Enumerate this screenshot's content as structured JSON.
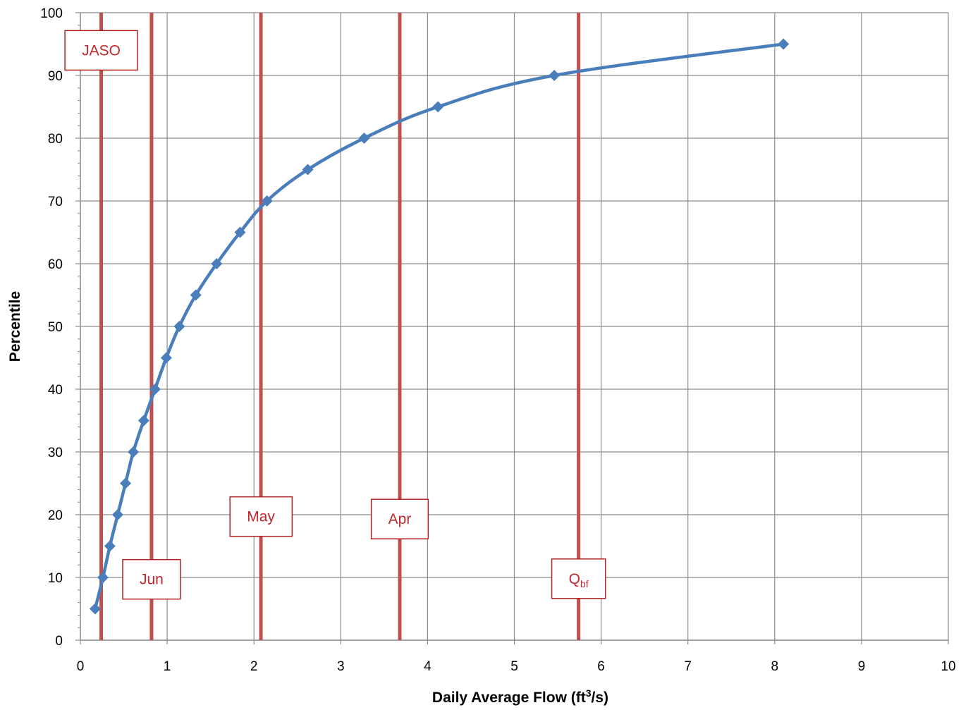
{
  "chart_data": {
    "type": "line",
    "title": "",
    "xlabel_main": "Daily Average Flow (ft",
    "xlabel_sup": "3",
    "xlabel_tail": "/s)",
    "ylabel": "Percentile",
    "xlim": [
      0,
      10
    ],
    "ylim": [
      0,
      100
    ],
    "x_ticks": [
      "0",
      "1",
      "2",
      "3",
      "4",
      "5",
      "6",
      "7",
      "8",
      "9",
      "10"
    ],
    "y_ticks": [
      "0",
      "10",
      "20",
      "30",
      "40",
      "50",
      "60",
      "70",
      "80",
      "90",
      "100"
    ],
    "grid": true,
    "series": [
      {
        "color": "#4a7ebb",
        "marker": "diamond",
        "x": [
          0.17,
          0.26,
          0.34,
          0.43,
          0.52,
          0.61,
          0.73,
          0.86,
          0.99,
          1.14,
          1.33,
          1.57,
          1.84,
          2.15,
          2.62,
          3.27,
          4.12,
          5.46,
          8.1
        ],
        "y": [
          5,
          10,
          15,
          20,
          25,
          30,
          35,
          40,
          45,
          50,
          55,
          60,
          65,
          70,
          75,
          80,
          85,
          90,
          95
        ]
      }
    ],
    "reference_lines": [
      {
        "x": 0.24,
        "label": "JASO",
        "label_y": 94
      },
      {
        "x": 0.82,
        "label": "Jun",
        "label_y": 9.7
      },
      {
        "x": 2.08,
        "label": "May",
        "label_y": 19.7
      },
      {
        "x": 3.68,
        "label": "Apr",
        "label_y": 19.3
      },
      {
        "x": 5.74,
        "label": "Q",
        "label_sub": "bf",
        "label_y": 9.8
      }
    ],
    "reference_color": "#c0504d",
    "reference_text_color": "#c0282d",
    "reference_label_border": "#b22222"
  }
}
